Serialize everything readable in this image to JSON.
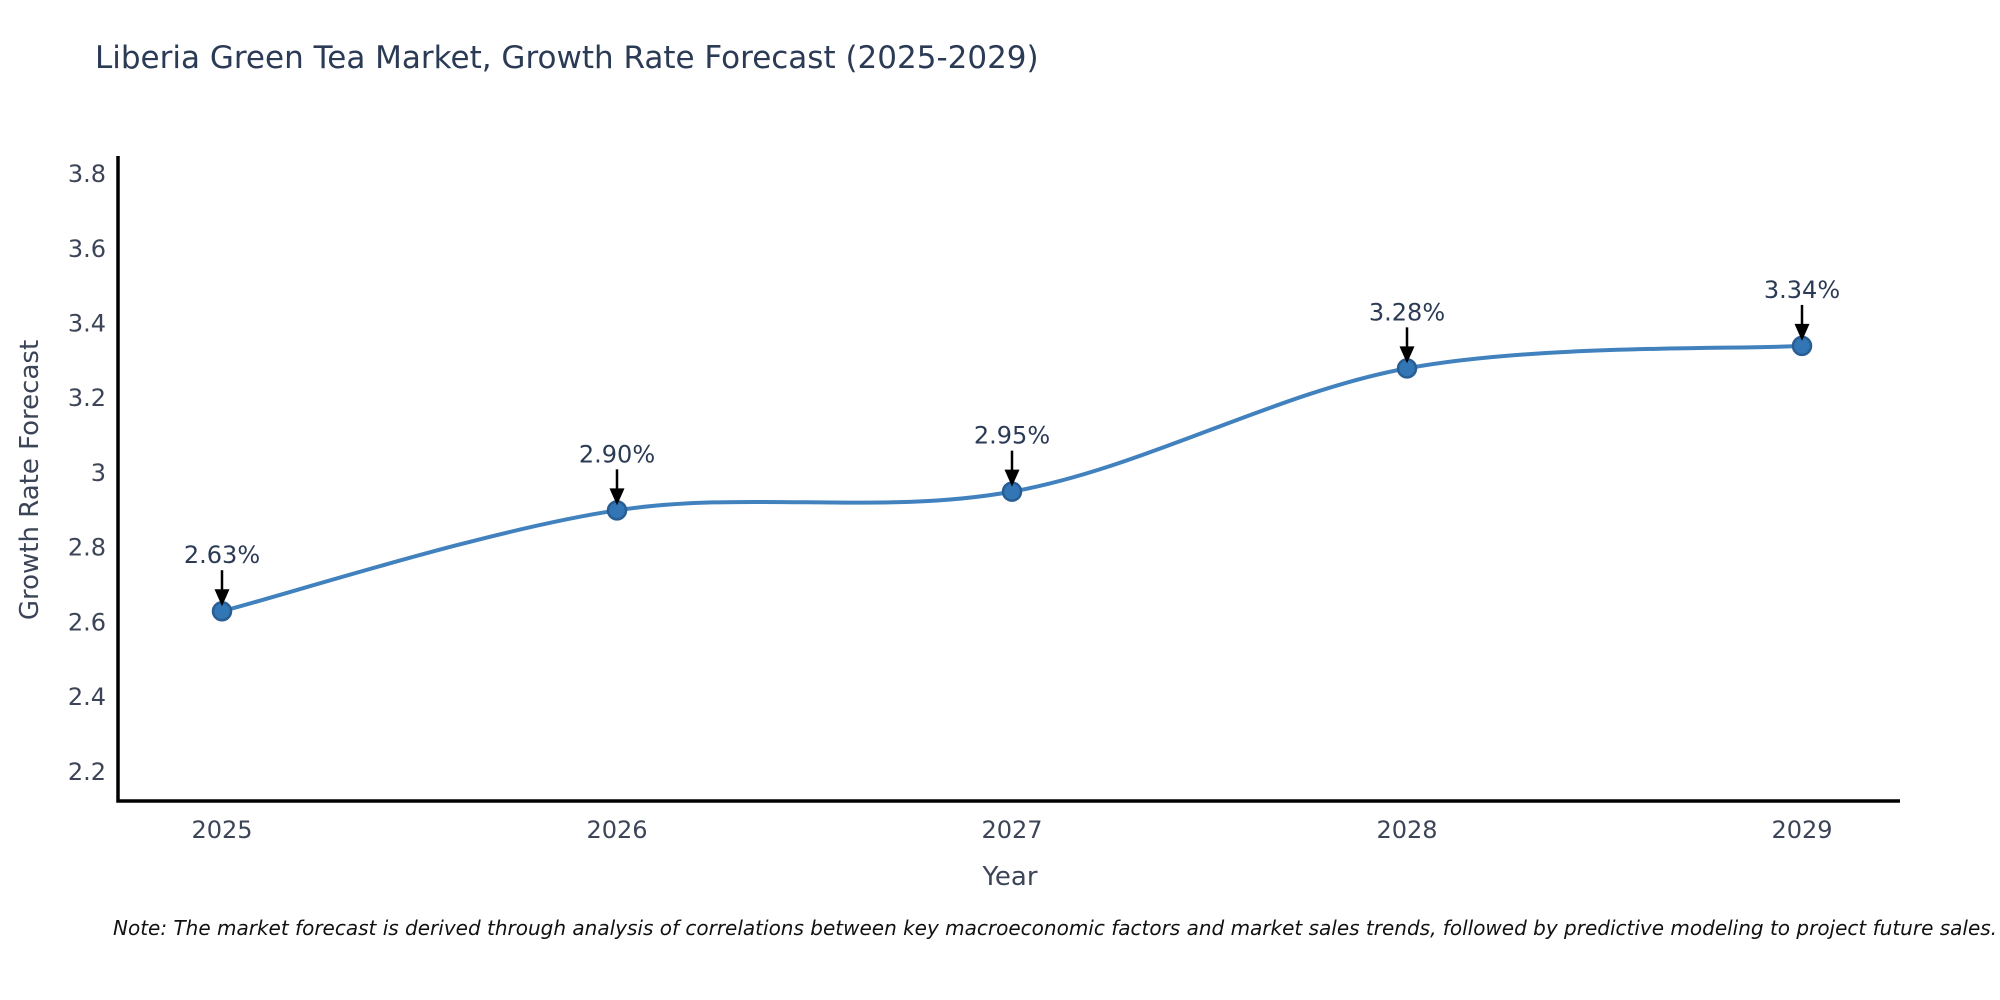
{
  "title": "Liberia Green Tea Market, Growth Rate Forecast (2025-2029)",
  "note": "Note: The market forecast is derived through analysis of correlations between key macroeconomic factors and market sales trends, followed by predictive modeling to project future sales.",
  "colors": {
    "line": "#4182be",
    "marker_fill": "#3276b5",
    "marker_edge": "#285e94",
    "axis": "#000000",
    "title_text": "#2b3a55",
    "tick_text": "#3c4457",
    "annotation_arrow": "#000000"
  },
  "chart_data": {
    "type": "line",
    "categories": [
      "2025",
      "2026",
      "2027",
      "2028",
      "2029"
    ],
    "values": [
      2.63,
      2.9,
      2.95,
      3.28,
      3.34
    ],
    "point_labels": [
      "2.63%",
      "2.90%",
      "2.95%",
      "3.28%",
      "3.34%"
    ],
    "title": "Liberia Green Tea Market, Growth Rate Forecast (2025-2029)",
    "xlabel": "Year",
    "ylabel": "Growth Rate Forecast",
    "ylim": [
      2.122,
      3.843
    ],
    "yticks": [
      2.2,
      2.4,
      2.6,
      2.8,
      3,
      3.2,
      3.4,
      3.6,
      3.8
    ],
    "ytick_labels": [
      "2.2",
      "2.4",
      "2.6",
      "2.8",
      "3",
      "3.2",
      "3.4",
      "3.6",
      "3.8"
    ],
    "grid": false,
    "legend_position": "none",
    "line_shape": "spline",
    "markers": true,
    "annotations": "value-labels-with-down-arrows"
  }
}
